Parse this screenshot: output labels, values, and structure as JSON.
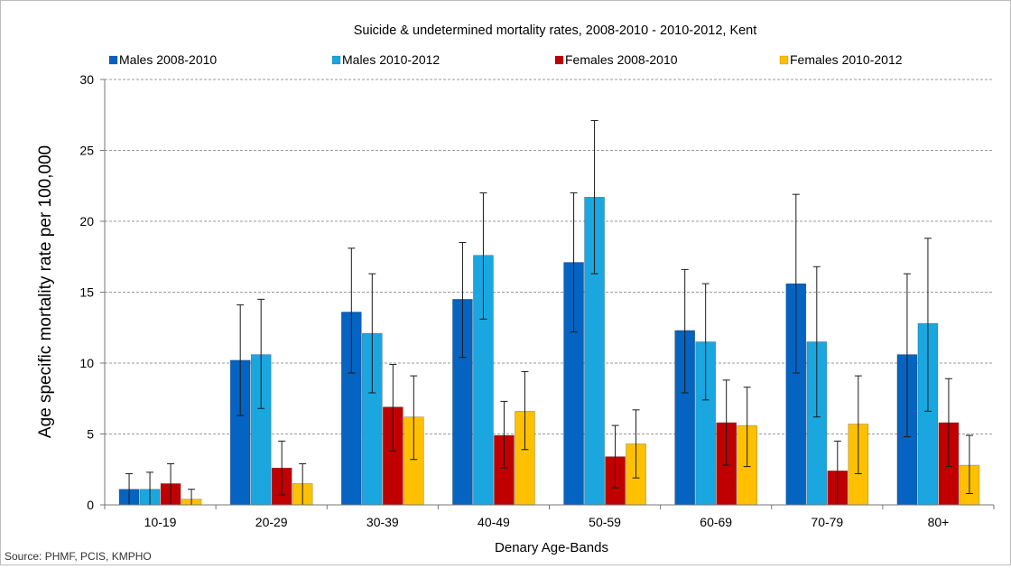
{
  "chart_data": {
    "type": "bar",
    "title": "Suicide & undetermined mortality rates, 2008-2010 - 2010-2012, Kent",
    "xlabel": "Denary Age-Bands",
    "ylabel": "Age specific mortality rate per 100,000",
    "ylim": [
      0,
      30
    ],
    "yticks": [
      "0",
      "5",
      "10",
      "15",
      "20",
      "25",
      "30"
    ],
    "ytick_values": [
      0,
      5,
      10,
      15,
      20,
      25,
      30
    ],
    "grid": "horizontal dashed",
    "legend_position": "top",
    "categories": [
      "10-19",
      "20-29",
      "30-39",
      "40-49",
      "50-59",
      "60-69",
      "70-79",
      "80+"
    ],
    "series": [
      {
        "name": "Males 2008-2010",
        "color": "#0563c1",
        "values": [
          1.1,
          10.2,
          13.6,
          14.5,
          17.1,
          12.3,
          15.6,
          10.6
        ],
        "error_low": [
          0.0,
          6.3,
          9.3,
          10.4,
          12.2,
          7.9,
          9.3,
          4.8
        ],
        "error_high": [
          2.2,
          14.1,
          18.1,
          18.5,
          22.0,
          16.6,
          21.9,
          16.3
        ]
      },
      {
        "name": "Males 2010-2012",
        "color": "#1aa7e0",
        "values": [
          1.1,
          10.6,
          12.1,
          17.6,
          21.7,
          11.5,
          11.5,
          12.8
        ],
        "error_low": [
          0.0,
          6.8,
          7.9,
          13.1,
          16.3,
          7.4,
          6.2,
          6.6
        ],
        "error_high": [
          2.3,
          14.5,
          16.3,
          22.0,
          27.1,
          15.6,
          16.8,
          18.8
        ]
      },
      {
        "name": "Females 2008-2010",
        "color": "#c00000",
        "values": [
          1.5,
          2.6,
          6.9,
          4.9,
          3.4,
          5.8,
          2.4,
          5.8
        ],
        "error_low": [
          0.0,
          0.7,
          3.8,
          2.6,
          1.2,
          2.8,
          0.0,
          2.7
        ],
        "error_high": [
          2.9,
          4.5,
          9.9,
          7.3,
          5.6,
          8.8,
          4.5,
          8.9
        ]
      },
      {
        "name": "Females 2010-2012",
        "color": "#ffc000",
        "values": [
          0.4,
          1.5,
          6.2,
          6.6,
          4.3,
          5.6,
          5.7,
          2.8
        ],
        "error_low": [
          0.0,
          0.0,
          3.2,
          3.9,
          1.9,
          2.7,
          2.2,
          0.8
        ],
        "error_high": [
          1.1,
          2.9,
          9.1,
          9.4,
          6.7,
          8.3,
          9.1,
          4.9
        ]
      }
    ]
  },
  "source": "Source: PHMF, PCIS, KMPHO"
}
